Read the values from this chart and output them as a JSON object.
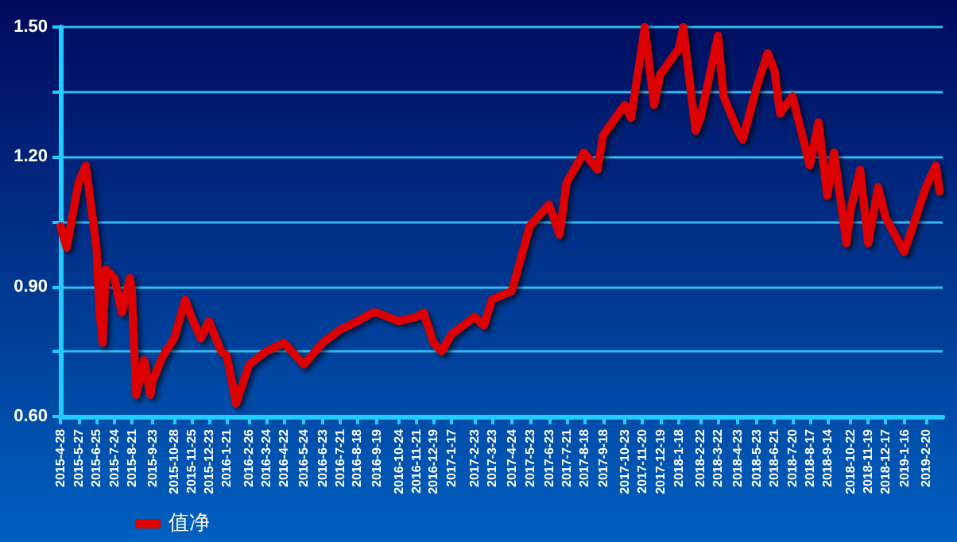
{
  "chart_data": {
    "type": "line",
    "x": [
      "2015-04-28",
      "2015-05-08",
      "2015-05-27",
      "2015-06-08",
      "2015-06-25",
      "2015-06-30",
      "2015-07-05",
      "2015-07-10",
      "2015-07-24",
      "2015-08-05",
      "2015-08-18",
      "2015-08-21",
      "2015-08-28",
      "2015-09-10",
      "2015-09-20",
      "2015-09-23",
      "2015-10-10",
      "2015-10-28",
      "2015-11-15",
      "2015-11-25",
      "2015-12-10",
      "2015-12-23",
      "2016-01-12",
      "2016-01-21",
      "2016-02-05",
      "2016-02-26",
      "2016-03-24",
      "2016-04-22",
      "2016-05-24",
      "2016-06-23",
      "2016-07-21",
      "2016-08-18",
      "2016-09-12",
      "2016-09-19",
      "2016-10-24",
      "2016-11-21",
      "2016-12-03",
      "2016-12-19",
      "2017-01-01",
      "2017-01-17",
      "2017-02-23",
      "2017-03-10",
      "2017-03-23",
      "2017-04-24",
      "2017-05-23",
      "2017-06-23",
      "2017-07-10",
      "2017-07-21",
      "2017-08-18",
      "2017-09-09",
      "2017-09-18",
      "2017-10-23",
      "2017-11-02",
      "2017-11-20",
      "2017-11-24",
      "2017-12-09",
      "2017-12-19",
      "2018-01-18",
      "2018-01-25",
      "2018-02-14",
      "2018-02-22",
      "2018-03-22",
      "2018-03-31",
      "2018-04-23",
      "2018-05-01",
      "2018-05-23",
      "2018-06-10",
      "2018-06-21",
      "2018-06-30",
      "2018-07-20",
      "2018-08-17",
      "2018-08-31",
      "2018-09-14",
      "2018-09-25",
      "2018-10-15",
      "2018-10-22",
      "2018-11-06",
      "2018-11-19",
      "2018-12-05",
      "2018-12-17",
      "2019-01-16",
      "2019-02-20",
      "2019-03-08",
      "2019-03-14"
    ],
    "series": [
      {
        "name": "值净",
        "color": "#dd0000",
        "values": [
          1.04,
          0.99,
          1.14,
          1.18,
          0.99,
          0.84,
          0.77,
          0.94,
          0.92,
          0.84,
          0.92,
          0.89,
          0.65,
          0.73,
          0.65,
          0.68,
          0.74,
          0.78,
          0.87,
          0.83,
          0.78,
          0.82,
          0.75,
          0.74,
          0.63,
          0.72,
          0.75,
          0.77,
          0.72,
          0.77,
          0.8,
          0.82,
          0.84,
          0.84,
          0.82,
          0.83,
          0.84,
          0.77,
          0.75,
          0.79,
          0.83,
          0.81,
          0.87,
          0.89,
          1.04,
          1.09,
          1.02,
          1.14,
          1.21,
          1.17,
          1.25,
          1.32,
          1.29,
          1.46,
          1.5,
          1.32,
          1.39,
          1.45,
          1.5,
          1.26,
          1.29,
          1.48,
          1.34,
          1.26,
          1.24,
          1.36,
          1.44,
          1.4,
          1.3,
          1.34,
          1.18,
          1.28,
          1.11,
          1.21,
          1.0,
          1.08,
          1.17,
          1.0,
          1.13,
          1.06,
          0.98,
          1.13,
          1.18,
          1.12
        ]
      }
    ],
    "xlim": [
      "2015-04-28",
      "2019-03-19"
    ],
    "xticks": [
      {
        "value": "2015-04-28",
        "label": "2015-4-28"
      },
      {
        "value": "2015-05-27",
        "label": "2015-5-27"
      },
      {
        "value": "2015-06-25",
        "label": "2015-6-25"
      },
      {
        "value": "2015-07-24",
        "label": "2015-7-24"
      },
      {
        "value": "2015-08-21",
        "label": "2015-8-21"
      },
      {
        "value": "2015-09-23",
        "label": "2015-9-23"
      },
      {
        "value": "2015-10-28",
        "label": "2015-10-28"
      },
      {
        "value": "2015-11-25",
        "label": "2015-11-25"
      },
      {
        "value": "2015-12-23",
        "label": "2015-12-23"
      },
      {
        "value": "2016-01-21",
        "label": "2016-1-21"
      },
      {
        "value": "2016-02-26",
        "label": "2016-2-26"
      },
      {
        "value": "2016-03-24",
        "label": "2016-3-24"
      },
      {
        "value": "2016-04-22",
        "label": "2016-4-22"
      },
      {
        "value": "2016-05-24",
        "label": "2016-5-24"
      },
      {
        "value": "2016-06-23",
        "label": "2016-6-23"
      },
      {
        "value": "2016-07-21",
        "label": "2016-7-21"
      },
      {
        "value": "2016-08-18",
        "label": "2016-8-18"
      },
      {
        "value": "2016-09-19",
        "label": "2016-9-19"
      },
      {
        "value": "2016-10-24",
        "label": "2016-10-24"
      },
      {
        "value": "2016-11-21",
        "label": "2016-11-21"
      },
      {
        "value": "2016-12-19",
        "label": "2016-12-19"
      },
      {
        "value": "2017-01-17",
        "label": "2017-1-17"
      },
      {
        "value": "2017-02-23",
        "label": "2017-2-23"
      },
      {
        "value": "2017-03-23",
        "label": "2017-3-23"
      },
      {
        "value": "2017-04-24",
        "label": "2017-4-24"
      },
      {
        "value": "2017-05-23",
        "label": "2017-5-23"
      },
      {
        "value": "2017-06-23",
        "label": "2017-6-23"
      },
      {
        "value": "2017-07-21",
        "label": "2017-7-21"
      },
      {
        "value": "2017-08-18",
        "label": "2017-8-18"
      },
      {
        "value": "2017-09-18",
        "label": "2017-9-18"
      },
      {
        "value": "2017-10-23",
        "label": "2017-10-23"
      },
      {
        "value": "2017-11-20",
        "label": "2017-11-20"
      },
      {
        "value": "2017-12-19",
        "label": "2017-12-19"
      },
      {
        "value": "2018-01-18",
        "label": "2018-1-18"
      },
      {
        "value": "2018-02-22",
        "label": "2018-2-22"
      },
      {
        "value": "2018-03-22",
        "label": "2018-3-22"
      },
      {
        "value": "2018-04-23",
        "label": "2018-4-23"
      },
      {
        "value": "2018-05-23",
        "label": "2018-5-23"
      },
      {
        "value": "2018-06-21",
        "label": "2018-6-21"
      },
      {
        "value": "2018-07-20",
        "label": "2018-7-20"
      },
      {
        "value": "2018-08-17",
        "label": "2018-8-17"
      },
      {
        "value": "2018-09-14",
        "label": "2018-9-14"
      },
      {
        "value": "2018-10-22",
        "label": "2018-10-22"
      },
      {
        "value": "2018-11-19",
        "label": "2018-11-19"
      },
      {
        "value": "2018-12-17",
        "label": "2018-12-17"
      },
      {
        "value": "2019-01-16",
        "label": "2019-1-16"
      },
      {
        "value": "2019-02-20",
        "label": "2019-2-20"
      }
    ],
    "ylim": [
      0.6,
      1.5
    ],
    "yticks": [
      {
        "value": 0.6,
        "label": "0.60"
      },
      {
        "value": 0.75,
        "label": null
      },
      {
        "value": 0.9,
        "label": "0.90"
      },
      {
        "value": 1.05,
        "label": null
      },
      {
        "value": 1.2,
        "label": "1.20"
      },
      {
        "value": 1.35,
        "label": null
      },
      {
        "value": 1.5,
        "label": "1.50"
      }
    ],
    "grid": "y",
    "legend": "bottom left",
    "marker": "none",
    "line_style": "solid"
  }
}
